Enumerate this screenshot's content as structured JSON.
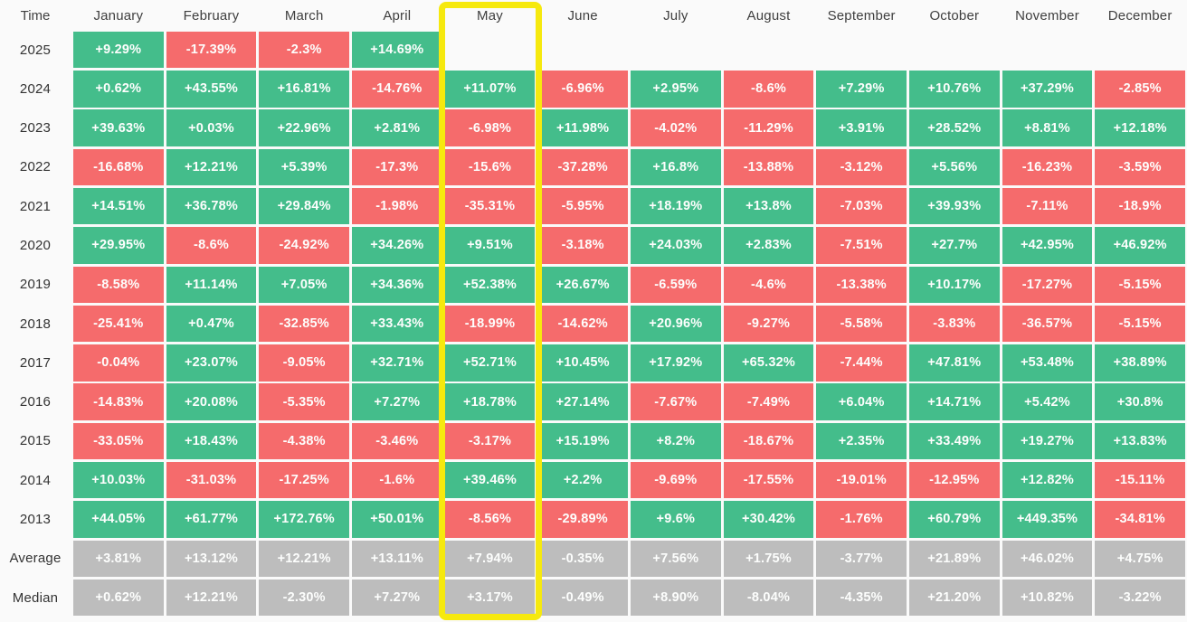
{
  "table": {
    "corner_label": "Time",
    "months": [
      "January",
      "February",
      "March",
      "April",
      "May",
      "June",
      "July",
      "August",
      "September",
      "October",
      "November",
      "December"
    ],
    "highlighted_month": "May",
    "rows": [
      {
        "label": "2025",
        "kind": "year",
        "cells": [
          "+9.29%",
          "-17.39%",
          "-2.3%",
          "+14.69%",
          null,
          null,
          null,
          null,
          null,
          null,
          null,
          null
        ]
      },
      {
        "label": "2024",
        "kind": "year",
        "cells": [
          "+0.62%",
          "+43.55%",
          "+16.81%",
          "-14.76%",
          "+11.07%",
          "-6.96%",
          "+2.95%",
          "-8.6%",
          "+7.29%",
          "+10.76%",
          "+37.29%",
          "-2.85%"
        ]
      },
      {
        "label": "2023",
        "kind": "year",
        "cells": [
          "+39.63%",
          "+0.03%",
          "+22.96%",
          "+2.81%",
          "-6.98%",
          "+11.98%",
          "-4.02%",
          "-11.29%",
          "+3.91%",
          "+28.52%",
          "+8.81%",
          "+12.18%"
        ]
      },
      {
        "label": "2022",
        "kind": "year",
        "cells": [
          "-16.68%",
          "+12.21%",
          "+5.39%",
          "-17.3%",
          "-15.6%",
          "-37.28%",
          "+16.8%",
          "-13.88%",
          "-3.12%",
          "+5.56%",
          "-16.23%",
          "-3.59%"
        ]
      },
      {
        "label": "2021",
        "kind": "year",
        "cells": [
          "+14.51%",
          "+36.78%",
          "+29.84%",
          "-1.98%",
          "-35.31%",
          "-5.95%",
          "+18.19%",
          "+13.8%",
          "-7.03%",
          "+39.93%",
          "-7.11%",
          "-18.9%"
        ]
      },
      {
        "label": "2020",
        "kind": "year",
        "cells": [
          "+29.95%",
          "-8.6%",
          "-24.92%",
          "+34.26%",
          "+9.51%",
          "-3.18%",
          "+24.03%",
          "+2.83%",
          "-7.51%",
          "+27.7%",
          "+42.95%",
          "+46.92%"
        ]
      },
      {
        "label": "2019",
        "kind": "year",
        "cells": [
          "-8.58%",
          "+11.14%",
          "+7.05%",
          "+34.36%",
          "+52.38%",
          "+26.67%",
          "-6.59%",
          "-4.6%",
          "-13.38%",
          "+10.17%",
          "-17.27%",
          "-5.15%"
        ]
      },
      {
        "label": "2018",
        "kind": "year",
        "cells": [
          "-25.41%",
          "+0.47%",
          "-32.85%",
          "+33.43%",
          "-18.99%",
          "-14.62%",
          "+20.96%",
          "-9.27%",
          "-5.58%",
          "-3.83%",
          "-36.57%",
          "-5.15%"
        ]
      },
      {
        "label": "2017",
        "kind": "year",
        "cells": [
          "-0.04%",
          "+23.07%",
          "-9.05%",
          "+32.71%",
          "+52.71%",
          "+10.45%",
          "+17.92%",
          "+65.32%",
          "-7.44%",
          "+47.81%",
          "+53.48%",
          "+38.89%"
        ]
      },
      {
        "label": "2016",
        "kind": "year",
        "cells": [
          "-14.83%",
          "+20.08%",
          "-5.35%",
          "+7.27%",
          "+18.78%",
          "+27.14%",
          "-7.67%",
          "-7.49%",
          "+6.04%",
          "+14.71%",
          "+5.42%",
          "+30.8%"
        ]
      },
      {
        "label": "2015",
        "kind": "year",
        "cells": [
          "-33.05%",
          "+18.43%",
          "-4.38%",
          "-3.46%",
          "-3.17%",
          "+15.19%",
          "+8.2%",
          "-18.67%",
          "+2.35%",
          "+33.49%",
          "+19.27%",
          "+13.83%"
        ]
      },
      {
        "label": "2014",
        "kind": "year",
        "cells": [
          "+10.03%",
          "-31.03%",
          "-17.25%",
          "-1.6%",
          "+39.46%",
          "+2.2%",
          "-9.69%",
          "-17.55%",
          "-19.01%",
          "-12.95%",
          "+12.82%",
          "-15.11%"
        ]
      },
      {
        "label": "2013",
        "kind": "year",
        "cells": [
          "+44.05%",
          "+61.77%",
          "+172.76%",
          "+50.01%",
          "-8.56%",
          "-29.89%",
          "+9.6%",
          "+30.42%",
          "-1.76%",
          "+60.79%",
          "+449.35%",
          "-34.81%"
        ]
      },
      {
        "label": "Average",
        "kind": "summary",
        "cells": [
          "+3.81%",
          "+13.12%",
          "+12.21%",
          "+13.11%",
          "+7.94%",
          "-0.35%",
          "+7.56%",
          "+1.75%",
          "-3.77%",
          "+21.89%",
          "+46.02%",
          "+4.75%"
        ]
      },
      {
        "label": "Median",
        "kind": "summary",
        "cells": [
          "+0.62%",
          "+12.21%",
          "-2.30%",
          "+7.27%",
          "+3.17%",
          "-0.49%",
          "+8.90%",
          "-8.04%",
          "-4.35%",
          "+21.20%",
          "+10.82%",
          "-3.22%"
        ]
      }
    ]
  },
  "colors": {
    "positive": "#44bd8b",
    "negative": "#f56b6c",
    "summary": "#bdbdbd",
    "highlight": "#f6e90e",
    "background": "#fafafa",
    "cell_text": "#fdfefd",
    "label_text": "#333333"
  },
  "chart_data": {
    "type": "heatmap",
    "title": "Monthly returns heatmap by year (%)",
    "unit": "%",
    "columns": [
      "January",
      "February",
      "March",
      "April",
      "May",
      "June",
      "July",
      "August",
      "September",
      "October",
      "November",
      "December"
    ],
    "rows": [
      "2025",
      "2024",
      "2023",
      "2022",
      "2021",
      "2020",
      "2019",
      "2018",
      "2017",
      "2016",
      "2015",
      "2014",
      "2013",
      "Average",
      "Median"
    ],
    "values_pct": [
      [
        9.29,
        -17.39,
        -2.3,
        14.69,
        null,
        null,
        null,
        null,
        null,
        null,
        null,
        null
      ],
      [
        0.62,
        43.55,
        16.81,
        -14.76,
        11.07,
        -6.96,
        2.95,
        -8.6,
        7.29,
        10.76,
        37.29,
        -2.85
      ],
      [
        39.63,
        0.03,
        22.96,
        2.81,
        -6.98,
        11.98,
        -4.02,
        -11.29,
        3.91,
        28.52,
        8.81,
        12.18
      ],
      [
        -16.68,
        12.21,
        5.39,
        -17.3,
        -15.6,
        -37.28,
        16.8,
        -13.88,
        -3.12,
        5.56,
        -16.23,
        -3.59
      ],
      [
        14.51,
        36.78,
        29.84,
        -1.98,
        -35.31,
        -5.95,
        18.19,
        13.8,
        -7.03,
        39.93,
        -7.11,
        -18.9
      ],
      [
        29.95,
        -8.6,
        -24.92,
        34.26,
        9.51,
        -3.18,
        24.03,
        2.83,
        -7.51,
        27.7,
        42.95,
        46.92
      ],
      [
        -8.58,
        11.14,
        7.05,
        34.36,
        52.38,
        26.67,
        -6.59,
        -4.6,
        -13.38,
        10.17,
        -17.27,
        -5.15
      ],
      [
        -25.41,
        0.47,
        -32.85,
        33.43,
        -18.99,
        -14.62,
        20.96,
        -9.27,
        -5.58,
        -3.83,
        -36.57,
        -5.15
      ],
      [
        -0.04,
        23.07,
        -9.05,
        32.71,
        52.71,
        10.45,
        17.92,
        65.32,
        -7.44,
        47.81,
        53.48,
        38.89
      ],
      [
        -14.83,
        20.08,
        -5.35,
        7.27,
        18.78,
        27.14,
        -7.67,
        -7.49,
        6.04,
        14.71,
        5.42,
        30.8
      ],
      [
        -33.05,
        18.43,
        -4.38,
        -3.46,
        -3.17,
        15.19,
        8.2,
        -18.67,
        2.35,
        33.49,
        19.27,
        13.83
      ],
      [
        10.03,
        -31.03,
        -17.25,
        -1.6,
        39.46,
        2.2,
        -9.69,
        -17.55,
        -19.01,
        -12.95,
        12.82,
        -15.11
      ],
      [
        44.05,
        61.77,
        172.76,
        50.01,
        -8.56,
        -29.89,
        9.6,
        30.42,
        -1.76,
        60.79,
        449.35,
        -34.81
      ],
      [
        3.81,
        13.12,
        12.21,
        13.11,
        7.94,
        -0.35,
        7.56,
        1.75,
        -3.77,
        21.89,
        46.02,
        4.75
      ],
      [
        0.62,
        12.21,
        -2.3,
        7.27,
        3.17,
        -0.49,
        8.9,
        -8.04,
        -4.35,
        21.2,
        10.82,
        -3.22
      ]
    ],
    "highlighted_column": "May",
    "color_coding": "green = positive return, red = negative return, gray = Average/Median summary rows",
    "legend_position": "none",
    "grid": "white gaps between cells"
  }
}
